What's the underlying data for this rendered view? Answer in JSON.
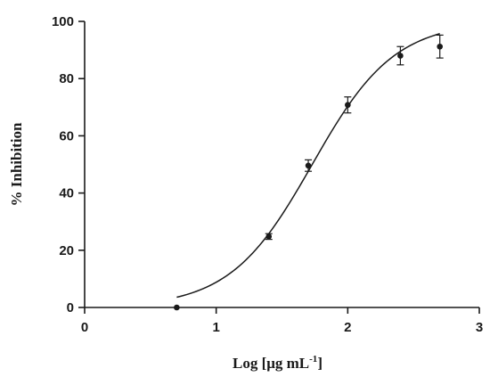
{
  "chart_data": {
    "type": "scatter",
    "title": "",
    "xlabel": "Log [μg mL",
    "xlabel_superscript": "-1",
    "xlabel_suffix": "]",
    "ylabel": "% Inhibition",
    "xlim": [
      0,
      3
    ],
    "ylim": [
      0,
      100
    ],
    "xticks": [
      0,
      1,
      2,
      3
    ],
    "yticks": [
      0,
      20,
      40,
      60,
      80,
      100
    ],
    "grid": false,
    "legend": "none",
    "series": [
      {
        "points": [
          {
            "x": 0.7,
            "y": 0.0,
            "err": 0.0
          },
          {
            "x": 1.4,
            "y": 24.8,
            "err": 1.0
          },
          {
            "x": 1.7,
            "y": 49.6,
            "err": 2.0
          },
          {
            "x": 2.0,
            "y": 70.8,
            "err": 2.8
          },
          {
            "x": 2.4,
            "y": 88.0,
            "err": 3.2
          },
          {
            "x": 2.7,
            "y": 91.2,
            "err": 4.0
          }
        ]
      }
    ],
    "fit": {
      "type": "sigmoid",
      "bottom": 0,
      "top": 100,
      "logEC50": 1.73,
      "hill": 1.39,
      "x_range": [
        0.7,
        2.7
      ]
    }
  }
}
